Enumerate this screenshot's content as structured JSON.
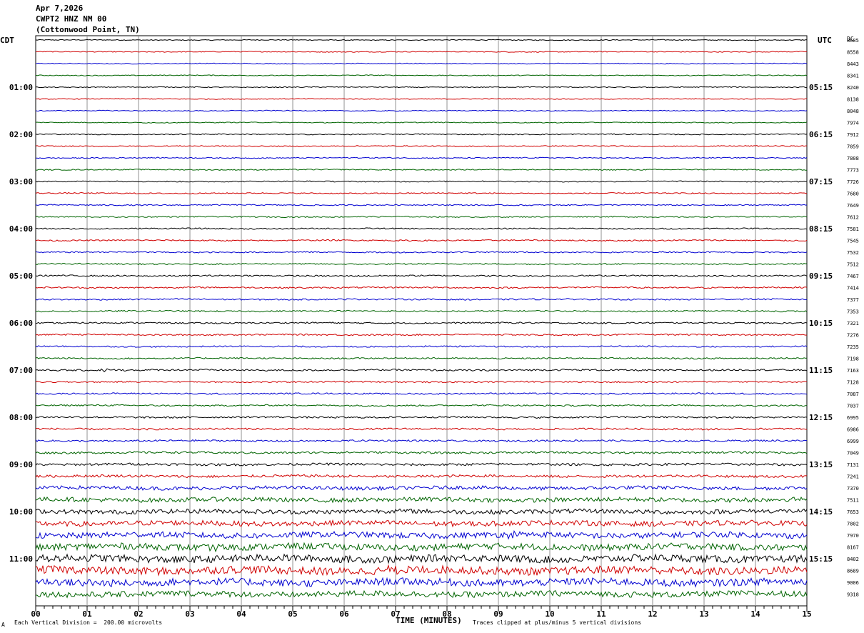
{
  "header": {
    "date": "Apr 7,2026",
    "station": "CWPT2 HNZ NM 00",
    "location": "(Cottonwood Point, TN)"
  },
  "left_axis_label": "CDT",
  "right_axis_label": "UTC",
  "dc_label": "DC",
  "footer": {
    "scale_note": "Each Vertical Division =  200.00 microvolts",
    "clip_note": "Traces clipped at plus/minus 5 vertical divisions",
    "corner_mark": "A"
  },
  "chart_data": {
    "type": "line",
    "title": "",
    "xlabel": "TIME (MINUTES)",
    "ylabel": "",
    "xlim": [
      0,
      15
    ],
    "x_ticks": [
      "00",
      "01",
      "02",
      "03",
      "04",
      "05",
      "06",
      "07",
      "08",
      "09",
      "10",
      "11",
      "12",
      "13",
      "14",
      "15"
    ],
    "trace_colors": [
      "#000000",
      "#d00000",
      "#0000d0",
      "#006400"
    ],
    "trace_count": 48,
    "left_time_labels": [
      {
        "trace": 4,
        "label": "01:00"
      },
      {
        "trace": 8,
        "label": "02:00"
      },
      {
        "trace": 12,
        "label": "03:00"
      },
      {
        "trace": 16,
        "label": "04:00"
      },
      {
        "trace": 20,
        "label": "05:00"
      },
      {
        "trace": 24,
        "label": "06:00"
      },
      {
        "trace": 28,
        "label": "07:00"
      },
      {
        "trace": 32,
        "label": "08:00"
      },
      {
        "trace": 36,
        "label": "09:00"
      },
      {
        "trace": 40,
        "label": "10:00"
      },
      {
        "trace": 44,
        "label": "11:00"
      }
    ],
    "right_time_labels": [
      {
        "trace": 4,
        "label": "05:15"
      },
      {
        "trace": 8,
        "label": "06:15"
      },
      {
        "trace": 12,
        "label": "07:15"
      },
      {
        "trace": 16,
        "label": "08:15"
      },
      {
        "trace": 20,
        "label": "09:15"
      },
      {
        "trace": 24,
        "label": "10:15"
      },
      {
        "trace": 28,
        "label": "11:15"
      },
      {
        "trace": 32,
        "label": "12:15"
      },
      {
        "trace": 36,
        "label": "13:15"
      },
      {
        "trace": 40,
        "label": "14:15"
      },
      {
        "trace": 44,
        "label": "15:15"
      }
    ],
    "dc_offsets": [
      "8685",
      "8558",
      "8443",
      "8341",
      "8240",
      "8138",
      "8048",
      "7974",
      "7912",
      "7859",
      "7808",
      "7773",
      "7726",
      "7680",
      "7649",
      "7612",
      "7581",
      "7545",
      "7532",
      "7512",
      "7467",
      "7414",
      "7377",
      "7353",
      "7321",
      "7276",
      "7235",
      "7198",
      "7163",
      "7128",
      "7087",
      "7037",
      "6995",
      "6986",
      "6999",
      "7049",
      "7131",
      "7241",
      "7370",
      "7511",
      "7653",
      "7802",
      "7970",
      "8167",
      "8402",
      "8689",
      "9006",
      "9318"
    ],
    "noise_levels": [
      0.6,
      0.6,
      0.6,
      0.6,
      0.6,
      0.6,
      0.6,
      0.6,
      0.7,
      0.7,
      0.7,
      0.7,
      0.8,
      0.8,
      0.8,
      0.8,
      0.9,
      0.9,
      0.9,
      0.9,
      1.0,
      1.0,
      1.0,
      1.0,
      1.0,
      1.0,
      1.0,
      1.0,
      1.2,
      1.0,
      1.0,
      1.0,
      1.2,
      1.2,
      1.2,
      1.4,
      1.6,
      1.8,
      2.5,
      3.0,
      3.0,
      3.5,
      4.0,
      4.5,
      5.0,
      5.5,
      5.0,
      4.0
    ],
    "events": [
      {
        "trace": 28,
        "minute": 1.3,
        "amplitude": 4
      },
      {
        "trace": 43,
        "minute": 3.5,
        "amplitude": 6
      },
      {
        "trace": 45,
        "minute": 1.7,
        "amplitude": 6
      },
      {
        "trace": 45,
        "minute": 6.9,
        "amplitude": 8
      },
      {
        "trace": 46,
        "minute": 0.8,
        "amplitude": 5
      },
      {
        "trace": 41,
        "minute": 8.5,
        "amplitude": 4
      },
      {
        "trace": 42,
        "minute": 9.2,
        "amplitude": 5
      },
      {
        "trace": 39,
        "minute": 13.7,
        "amplitude": 4
      }
    ]
  }
}
